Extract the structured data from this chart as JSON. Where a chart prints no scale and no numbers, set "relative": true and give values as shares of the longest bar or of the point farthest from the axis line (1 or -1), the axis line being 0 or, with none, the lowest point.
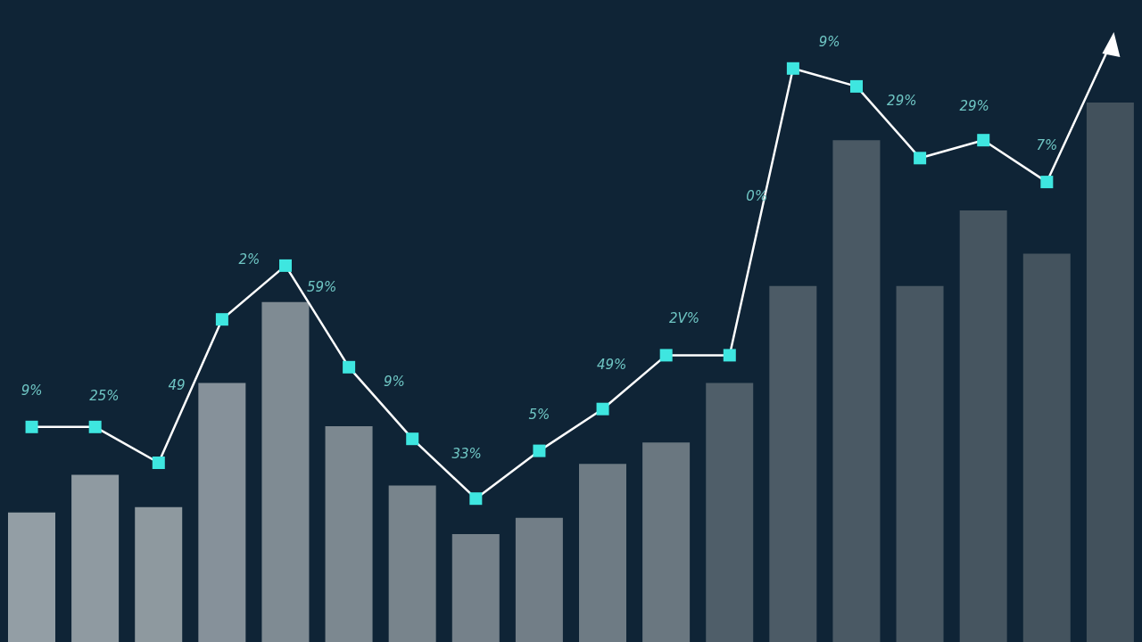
{
  "chart_data": [
    {
      "type": "bar",
      "relative": true,
      "categories": [
        null,
        null,
        null,
        null,
        null,
        null,
        null,
        null,
        null,
        null,
        null,
        null,
        null,
        null,
        null,
        null,
        null,
        null
      ],
      "colors": [
        "#939ea5",
        "#8f9aa1",
        "#8e999f",
        "#86919a",
        "#7f8b93",
        "#7c8890",
        "#78848c",
        "#75818a",
        "#727e87",
        "#6e7b84",
        "#6a7780",
        "#4f5e69",
        "#4c5b66",
        "#4a5964",
        "#485762",
        "#465560",
        "#44535e",
        "#42515c"
      ],
      "values": [
        0.24,
        0.31,
        0.25,
        0.48,
        0.63,
        0.4,
        0.29,
        0.2,
        0.23,
        0.33,
        0.37,
        0.48,
        0.66,
        0.93,
        0.66,
        0.8,
        0.72,
        1.0
      ]
    },
    {
      "type": "line",
      "relative": true,
      "marker": "square",
      "color": "#ffffff",
      "categories": [
        null,
        null,
        null,
        null,
        null,
        null,
        null,
        null,
        null,
        null,
        null,
        null,
        null,
        null,
        null,
        null,
        null,
        null
      ],
      "values": [
        0.36,
        0.36,
        0.3,
        0.54,
        0.63,
        0.46,
        0.34,
        0.24,
        0.32,
        0.39,
        0.48,
        0.48,
        0.96,
        0.93,
        0.81,
        0.84,
        0.77,
        1.0
      ],
      "annotations": [
        "9%",
        "25%",
        "49",
        "2%",
        "59%",
        "9%",
        "33%",
        "5%",
        "49%",
        "2V%",
        "0%",
        "9%",
        "29%",
        "29%",
        "7%"
      ]
    }
  ]
}
